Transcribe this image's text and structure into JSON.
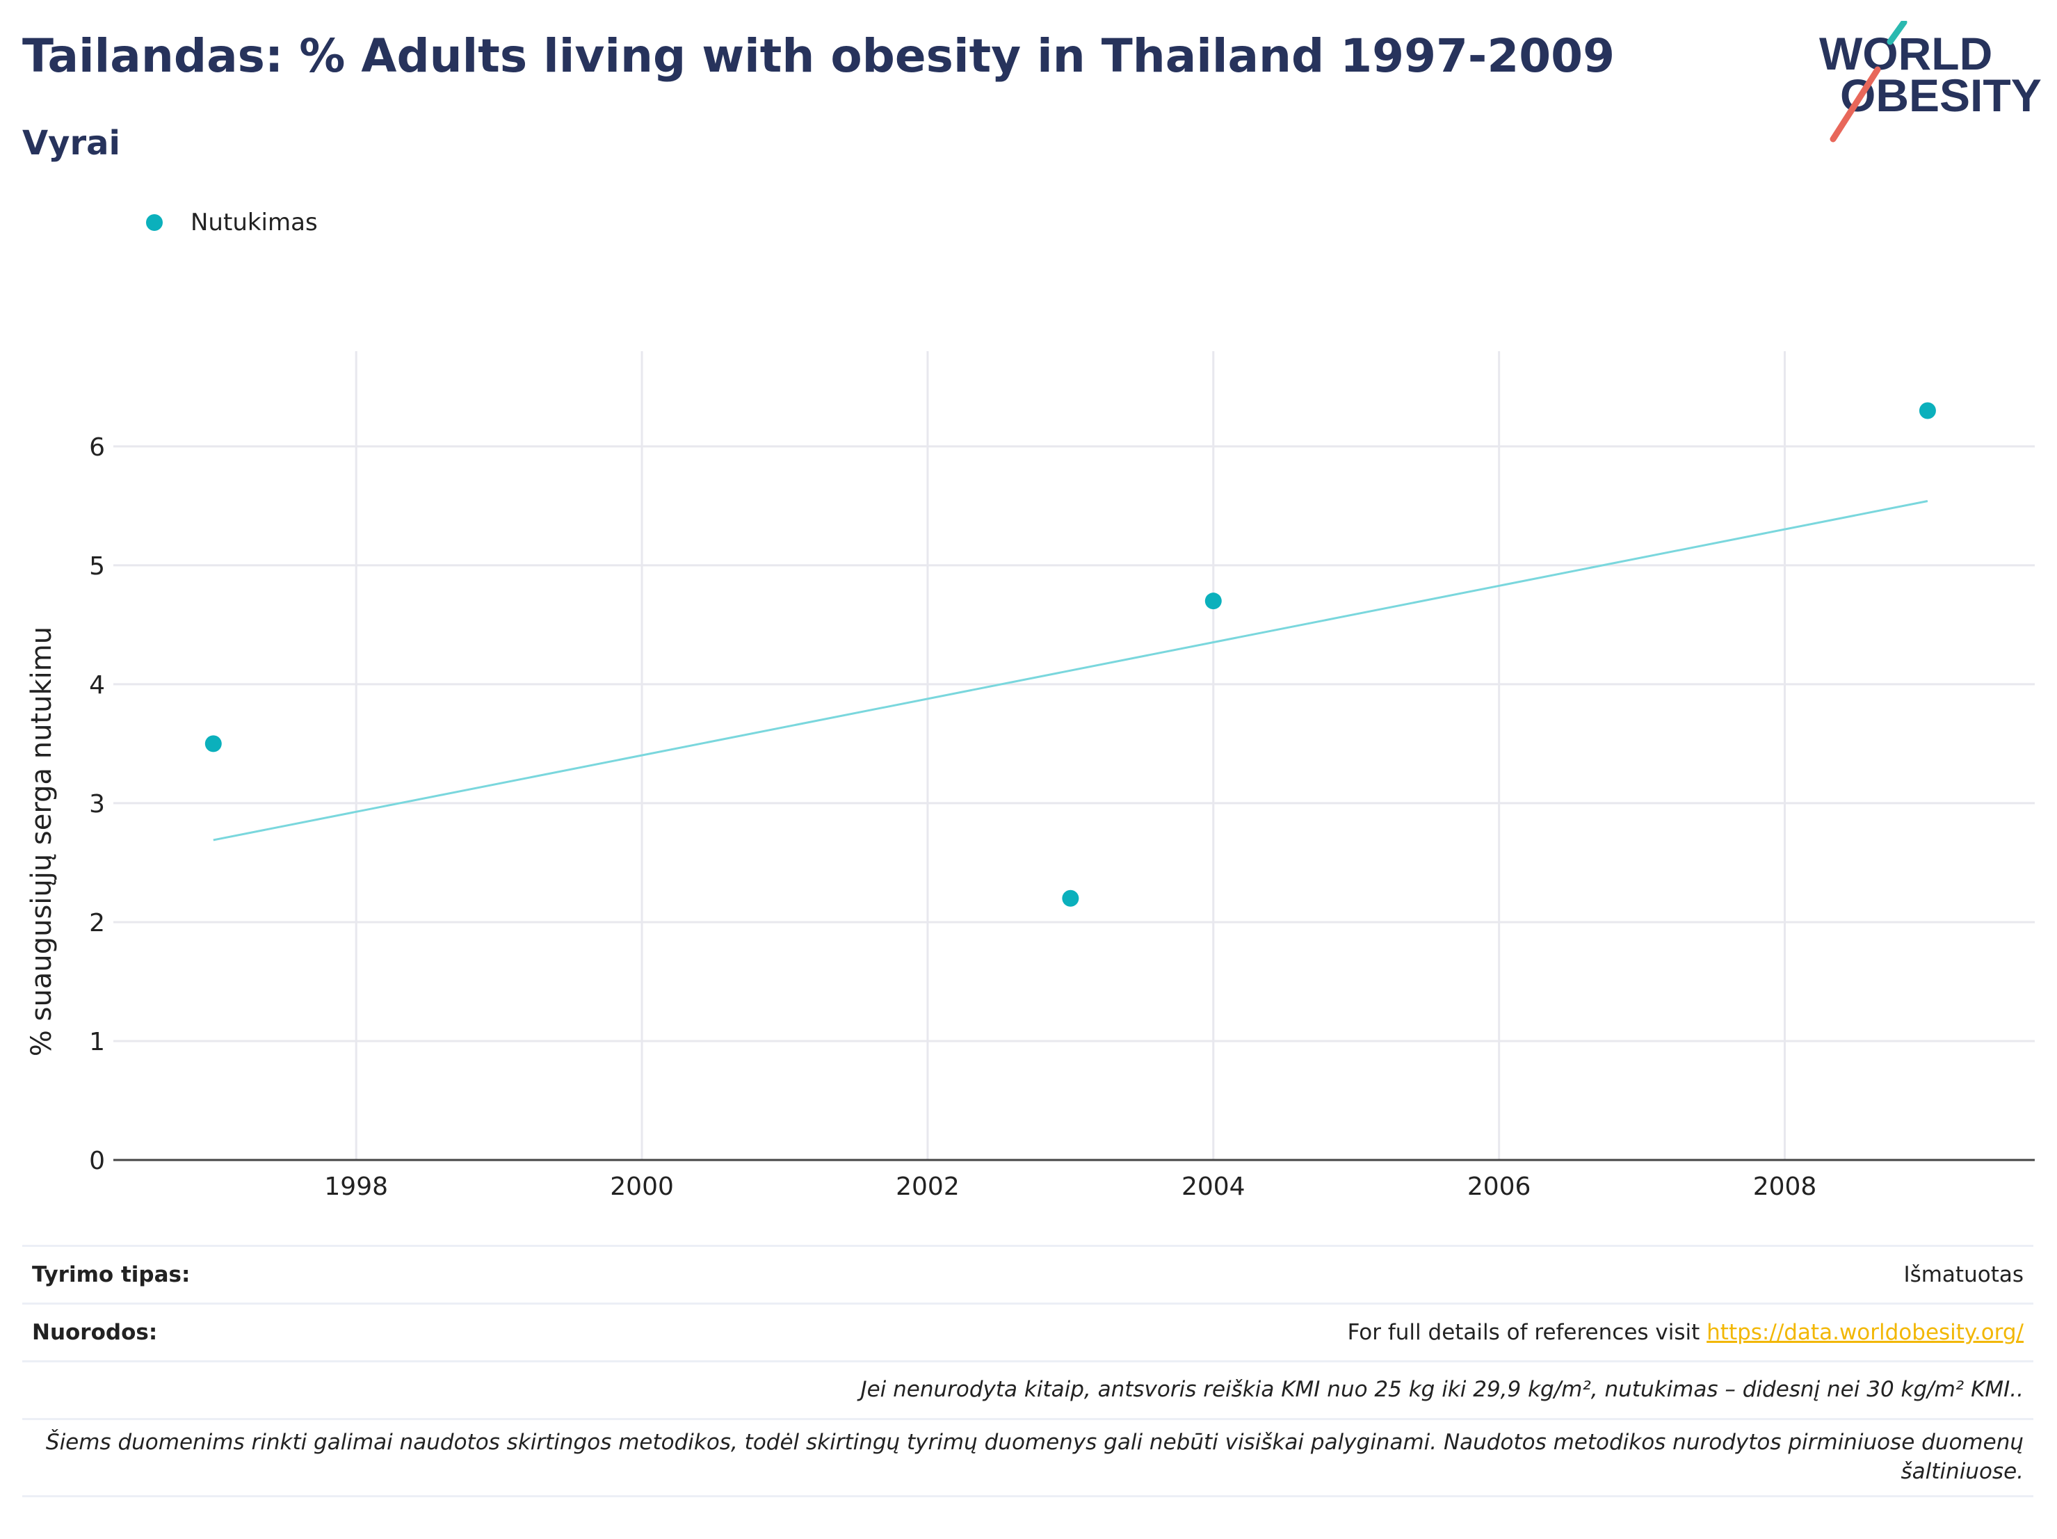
{
  "header": {
    "title": "Tailandas: % Adults living with obesity in Thailand 1997-2009",
    "subtitle": "Vyrai"
  },
  "logo": {
    "line1": "WORLD",
    "line2": "OBESITY"
  },
  "colors": {
    "title": "#27335c",
    "series": "#0bb0bc",
    "trend": "#7ad7dd",
    "logo_teal": "#2ab9b0",
    "logo_red": "#e8675a",
    "link": "#f2b705"
  },
  "legend": {
    "label": "Nutukimas"
  },
  "chart_data": {
    "type": "scatter",
    "ylabel": "% suaugusiųjų serga nutukimu",
    "xlim": [
      1996.3,
      2009.75
    ],
    "ylim": [
      0,
      6.8
    ],
    "x_ticks": [
      1998,
      2000,
      2002,
      2004,
      2006,
      2008
    ],
    "y_ticks": [
      0,
      1,
      2,
      3,
      4,
      5,
      6
    ],
    "grid": true,
    "legend_position": "top-left",
    "series": [
      {
        "name": "Nutukimas",
        "points": [
          {
            "x": 1997,
            "y": 3.5
          },
          {
            "x": 2003,
            "y": 2.2
          },
          {
            "x": 2004,
            "y": 4.7
          },
          {
            "x": 2009,
            "y": 6.3
          }
        ]
      }
    ],
    "trendline": {
      "x": [
        1997,
        2009
      ],
      "y": [
        2.69,
        5.54
      ]
    }
  },
  "footer": {
    "study_type_label": "Tyrimo tipas:",
    "study_type_value": "Išmatuotas",
    "references_label": "Nuorodos:",
    "references_text": "For full details of references visit ",
    "references_link": "https://data.worldobesity.org/",
    "note_definition": "Jei nenurodyta kitaip, antsvoris reiškia KMI nuo 25 kg iki 29,9 kg/m², nutukimas – didesnį nei 30 kg/m² KMI..",
    "note_methods": "Šiems duomenims rinkti galimai naudotos skirtingos metodikos, todėl skirtingų tyrimų duomenys gali nebūti visiškai palyginami. Naudotos metodikos nurodytos pirminiuose duomenų šaltiniuose."
  }
}
